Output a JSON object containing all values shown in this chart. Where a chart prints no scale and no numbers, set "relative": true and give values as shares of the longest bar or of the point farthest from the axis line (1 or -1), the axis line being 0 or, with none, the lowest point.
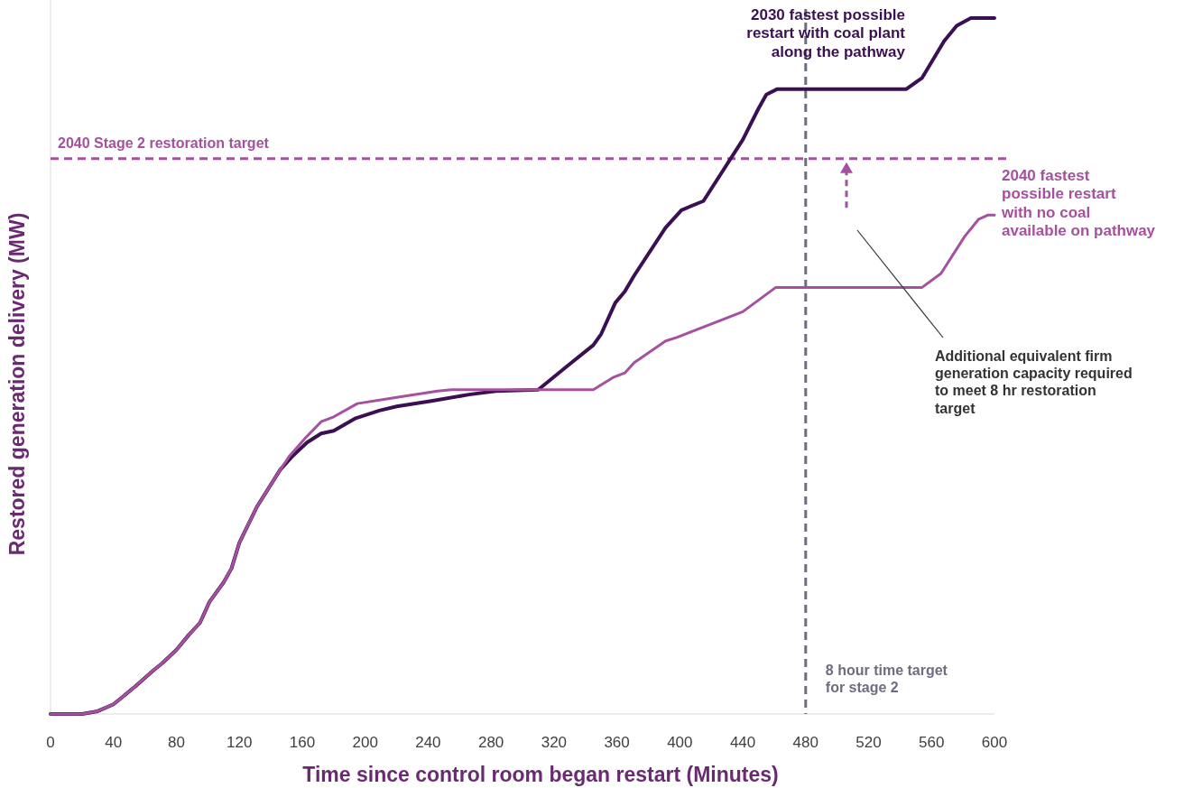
{
  "chart_data": {
    "type": "line",
    "relative": true,
    "xlabel": "Time since control room began restart (Minutes)",
    "ylabel": "Restored generation delivery (MW)",
    "xlim": [
      0,
      600
    ],
    "xticks": [
      0,
      40,
      80,
      120,
      160,
      200,
      240,
      280,
      320,
      360,
      400,
      440,
      480,
      520,
      560,
      600
    ],
    "grid": false,
    "line_style": "solid",
    "series": [
      {
        "name": "2030 fastest possible restart with coal plant along the pathway",
        "color": "#3b1052",
        "x": [
          0,
          20,
          30,
          40,
          45,
          54,
          65,
          71,
          80,
          88,
          95,
          101,
          110,
          115,
          120,
          131,
          146,
          154,
          163,
          172,
          180,
          194,
          209,
          220,
          243,
          266,
          283,
          310,
          329,
          345,
          350,
          359,
          365,
          371,
          391,
          401,
          415,
          440,
          450,
          455,
          462,
          544,
          554,
          568,
          576,
          585,
          600
        ],
        "values": [
          0,
          0,
          0.004,
          0.014,
          0.023,
          0.04,
          0.062,
          0.073,
          0.092,
          0.114,
          0.131,
          0.161,
          0.189,
          0.209,
          0.246,
          0.297,
          0.351,
          0.371,
          0.39,
          0.403,
          0.407,
          0.425,
          0.436,
          0.442,
          0.45,
          0.459,
          0.464,
          0.466,
          0.501,
          0.53,
          0.546,
          0.591,
          0.607,
          0.63,
          0.699,
          0.724,
          0.737,
          0.825,
          0.87,
          0.89,
          0.898,
          0.898,
          0.914,
          0.967,
          0.989,
          1,
          1
        ]
      },
      {
        "name": "2040 fastest possible restart with no coal available on pathway",
        "color": "#a5519f",
        "x": [
          0,
          20,
          30,
          40,
          45,
          54,
          65,
          71,
          80,
          88,
          95,
          101,
          110,
          115,
          120,
          131,
          146,
          152,
          163,
          172,
          180,
          195,
          220,
          246,
          255,
          345,
          358,
          365,
          371,
          391,
          398,
          440,
          461,
          554,
          566,
          581,
          590,
          596,
          600
        ],
        "values": [
          0,
          0,
          0.004,
          0.014,
          0.023,
          0.04,
          0.062,
          0.073,
          0.092,
          0.114,
          0.131,
          0.161,
          0.189,
          0.209,
          0.246,
          0.297,
          0.351,
          0.371,
          0.399,
          0.42,
          0.427,
          0.446,
          0.455,
          0.464,
          0.466,
          0.466,
          0.484,
          0.49,
          0.505,
          0.536,
          0.541,
          0.578,
          0.613,
          0.613,
          0.633,
          0.686,
          0.711,
          0.717,
          0.717
        ]
      }
    ],
    "ref_lines": [
      {
        "axis": "y",
        "value": 0.798,
        "label": "2040 Stage 2 restoration target",
        "color": "#a5519f",
        "line_style": "dashed"
      },
      {
        "axis": "x",
        "value": 480,
        "label": "8 hour time target for stage 2",
        "color": "#6e6c80",
        "line_style": "dashed"
      }
    ],
    "annotations": [
      "Additional equivalent firm generation capacity required to meet 8 hr restoration target"
    ]
  }
}
